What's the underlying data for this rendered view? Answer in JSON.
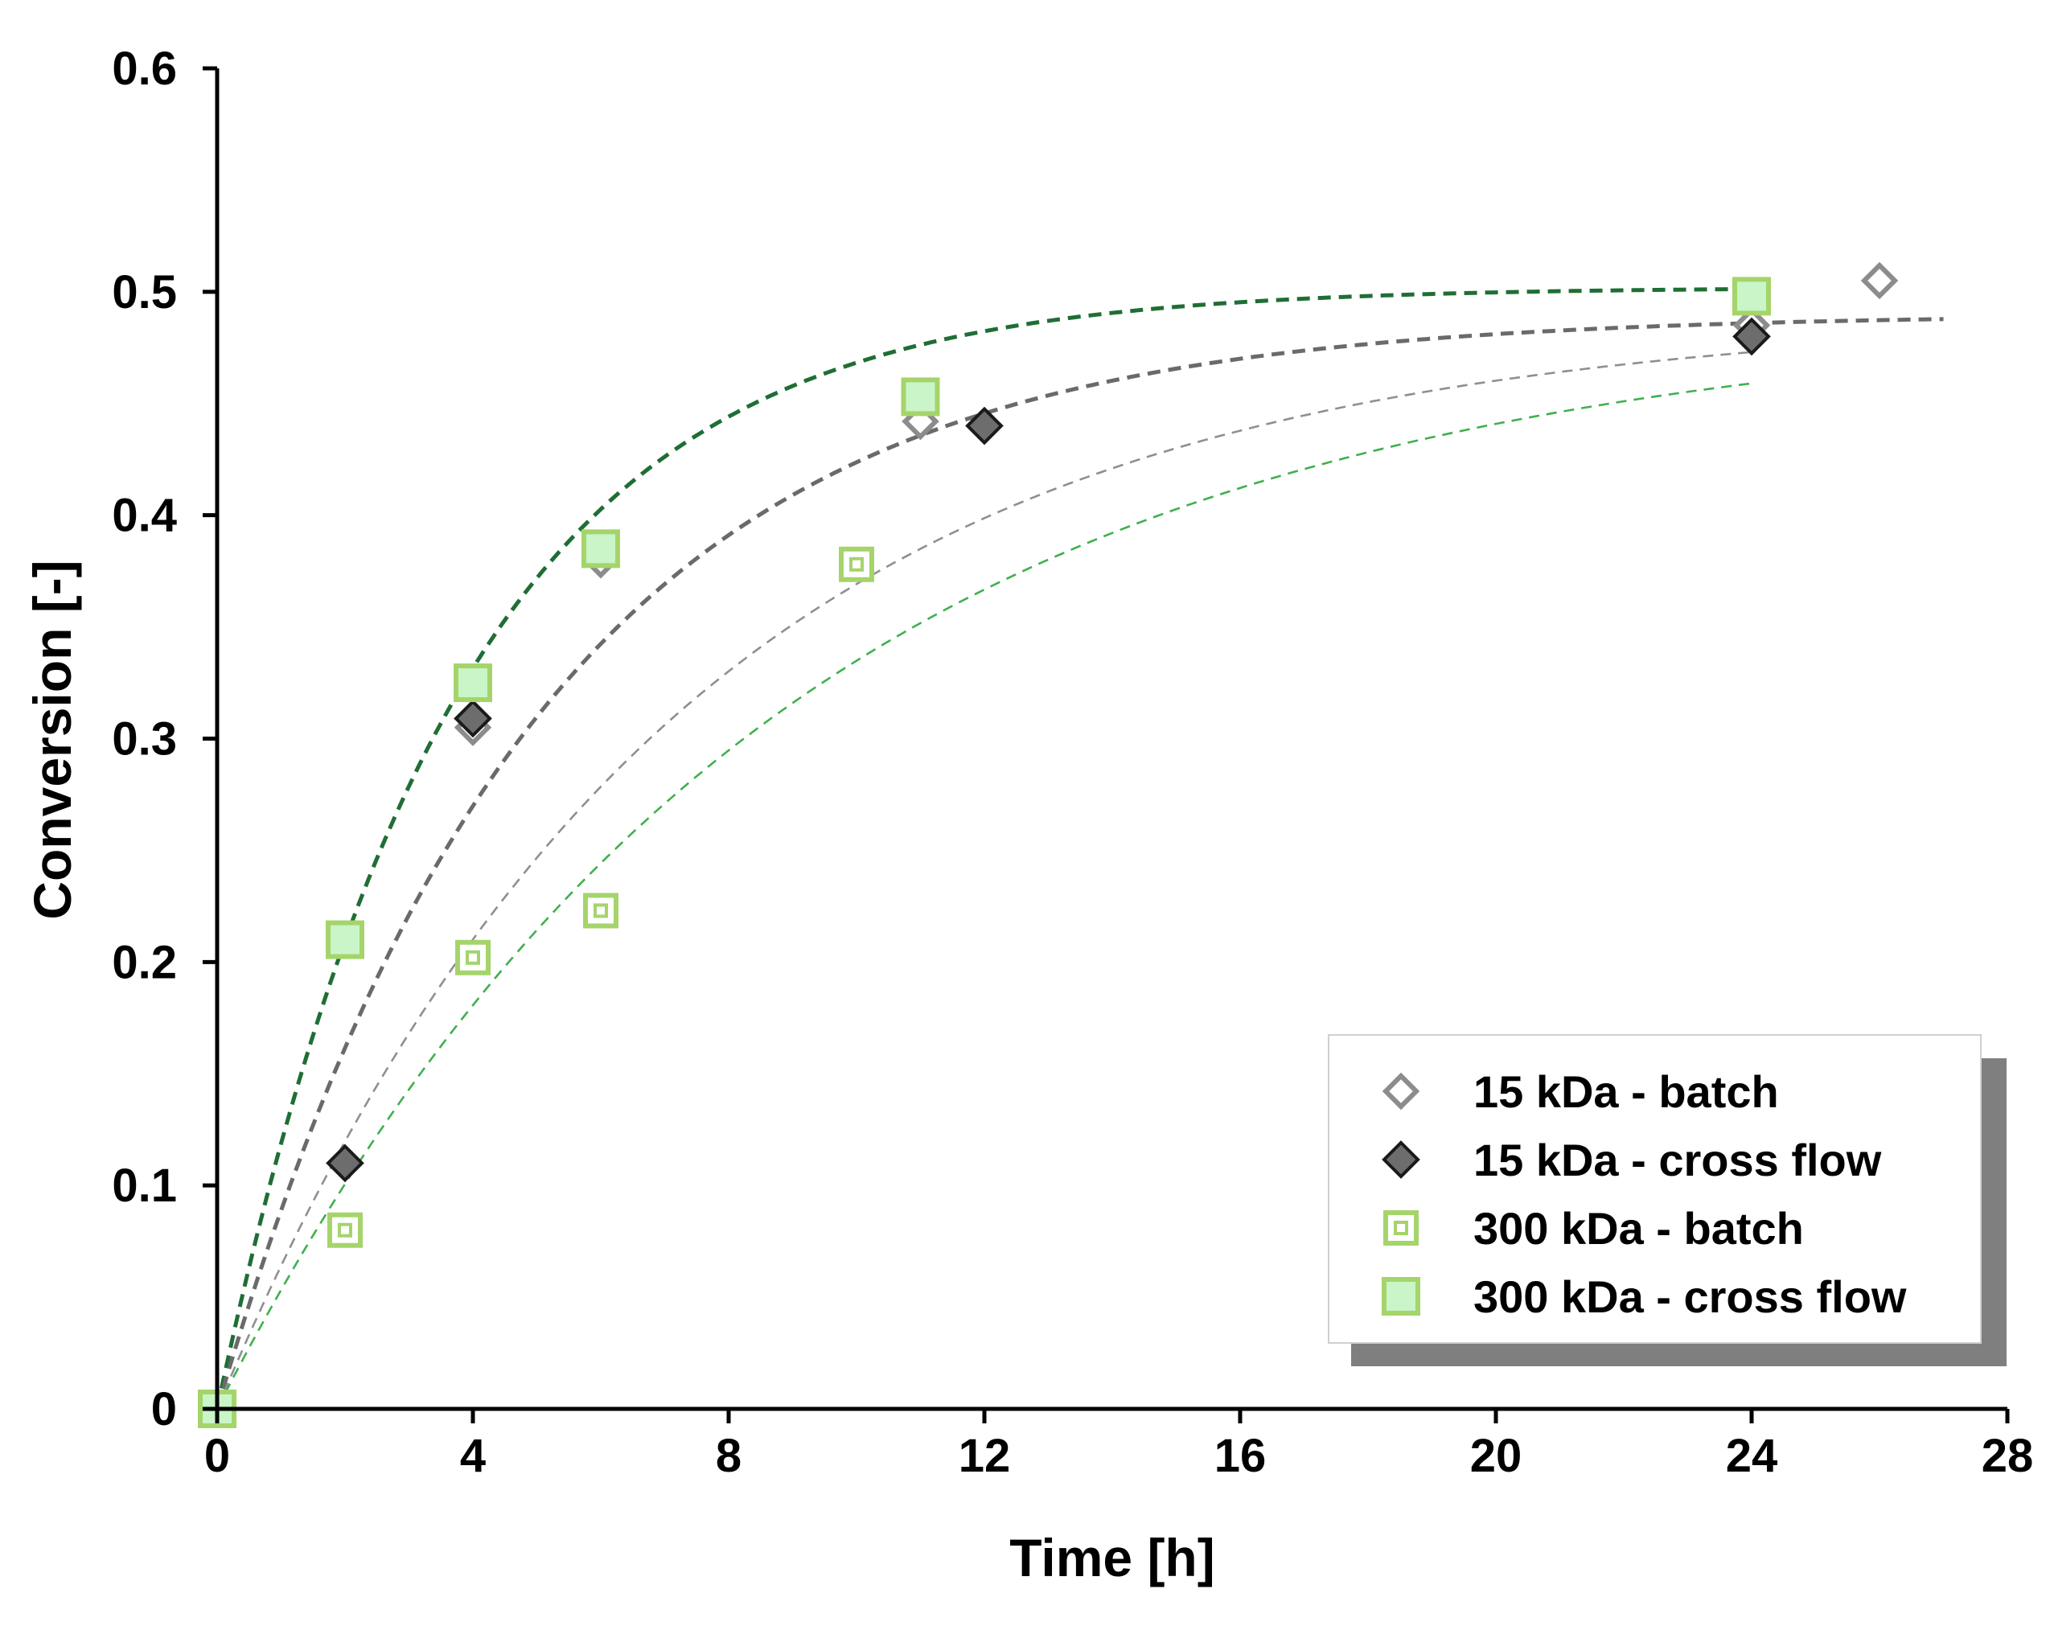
{
  "chart_data": {
    "type": "scatter",
    "xlabel": "Time [h]",
    "ylabel": "Conversion [-]",
    "xlim": [
      0,
      28
    ],
    "ylim": [
      0,
      0.6
    ],
    "xticks": [
      0,
      4,
      8,
      12,
      16,
      20,
      24,
      28
    ],
    "xtick_labels": [
      "0",
      "4",
      "8",
      "12",
      "16",
      "20",
      "24",
      "28"
    ],
    "yticks": [
      0,
      0.1,
      0.2,
      0.3,
      0.4,
      0.5,
      0.6
    ],
    "ytick_labels": [
      "0",
      "0.1",
      "0.2",
      "0.3",
      "0.4",
      "0.5",
      "0.6"
    ],
    "grid": false,
    "legend_position": "bottom-right",
    "series": [
      {
        "name": "15 kDa - batch",
        "marker": "diamond-open",
        "color": "#8c8c8c",
        "points": [
          [
            0,
            0
          ],
          [
            4,
            0.305
          ],
          [
            6,
            0.38
          ],
          [
            11,
            0.442
          ],
          [
            24,
            0.485
          ],
          [
            26,
            0.505
          ]
        ]
      },
      {
        "name": "15 kDa - cross flow",
        "marker": "diamond-filled",
        "color": "#6d6d6d",
        "points": [
          [
            0,
            0
          ],
          [
            2,
            0.11
          ],
          [
            4,
            0.309
          ],
          [
            12,
            0.44
          ],
          [
            24,
            0.48
          ]
        ]
      },
      {
        "name": "300 kDa - batch",
        "marker": "square-dotted",
        "color": "#a5d46a",
        "points": [
          [
            0,
            0
          ],
          [
            2,
            0.08
          ],
          [
            4,
            0.202
          ],
          [
            6,
            0.223
          ],
          [
            10,
            0.378
          ]
        ]
      },
      {
        "name": "300 kDa - cross flow",
        "marker": "square-filled",
        "color": "#a5d46a",
        "points": [
          [
            0,
            0
          ],
          [
            2,
            0.21
          ],
          [
            4,
            0.325
          ],
          [
            6,
            0.385
          ],
          [
            11,
            0.453
          ],
          [
            24,
            0.498
          ]
        ]
      }
    ],
    "fits": [
      {
        "name": "300 kDa - cross flow fit",
        "color": "#1f6e35",
        "width": "thick",
        "x_range": [
          0,
          24
        ],
        "k": 0.27,
        "a": 0.502
      },
      {
        "name": "15 kDa - cross flow fit",
        "color": "#6a6a6a",
        "width": "thick",
        "x_range": [
          0,
          27
        ],
        "k": 0.2,
        "a": 0.49
      },
      {
        "name": "15 kDa - batch fit",
        "color": "#8f8f8f",
        "width": "thin",
        "x_range": [
          0,
          24
        ],
        "k": 0.14,
        "a": 0.49
      },
      {
        "name": "300 kDa - batch fit",
        "color": "#3fb04c",
        "width": "thin",
        "x_range": [
          0,
          24
        ],
        "k": 0.115,
        "a": 0.49
      }
    ]
  }
}
